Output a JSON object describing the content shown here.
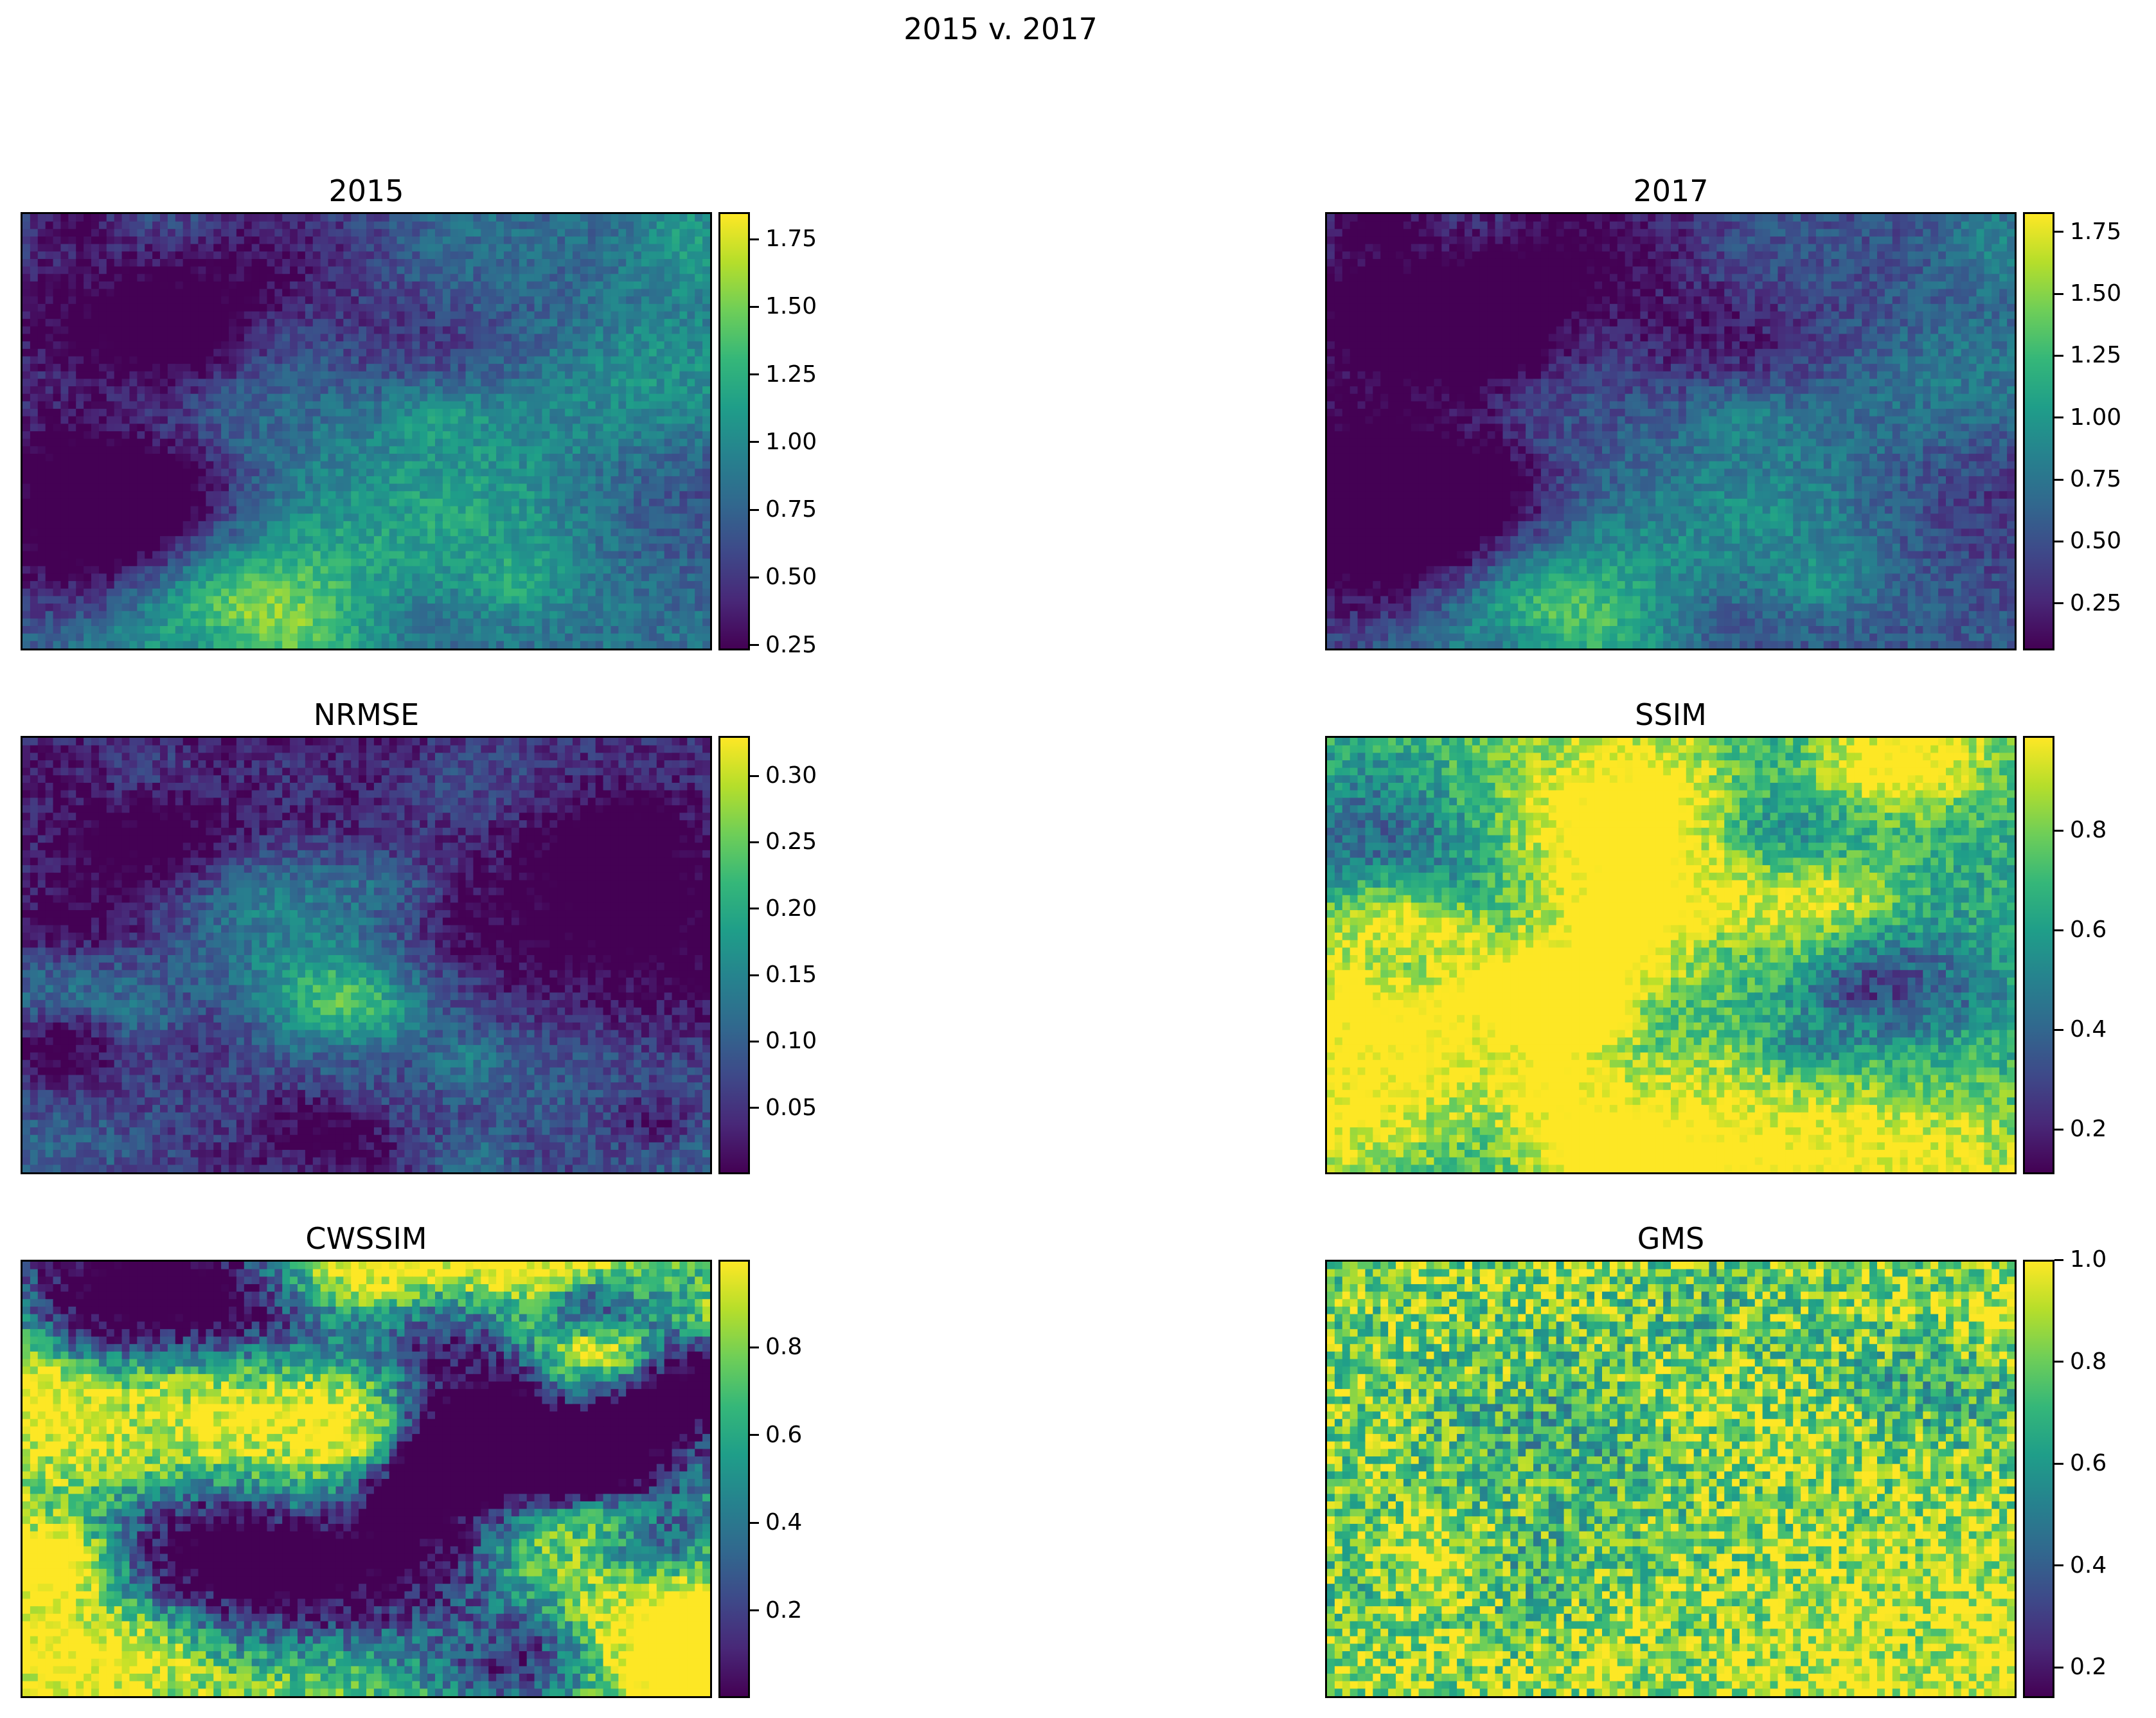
{
  "figure": {
    "title": "2015 v. 2017"
  },
  "chart_data": [
    {
      "type": "heatmap",
      "title": "2015",
      "colormap": "viridis",
      "ticks": [
        0.25,
        0.5,
        0.75,
        1.0,
        1.25,
        1.5,
        1.75
      ],
      "tick_labels": [
        "0.25",
        "0.50",
        "0.75",
        "1.00",
        "1.25",
        "1.50",
        "1.75"
      ],
      "clim": [
        0.23,
        1.85
      ]
    },
    {
      "type": "heatmap",
      "title": "2017",
      "colormap": "viridis",
      "ticks": [
        0.25,
        0.5,
        0.75,
        1.0,
        1.25,
        1.5,
        1.75
      ],
      "tick_labels": [
        "0.25",
        "0.50",
        "0.75",
        "1.00",
        "1.25",
        "1.50",
        "1.75"
      ],
      "clim": [
        0.06,
        1.83
      ]
    },
    {
      "type": "heatmap",
      "title": "NRMSE",
      "colormap": "viridis",
      "ticks": [
        0.05,
        0.1,
        0.15,
        0.2,
        0.25,
        0.3
      ],
      "tick_labels": [
        "0.05",
        "0.10",
        "0.15",
        "0.20",
        "0.25",
        "0.30"
      ],
      "clim": [
        0.0,
        0.33
      ]
    },
    {
      "type": "heatmap",
      "title": "SSIM",
      "colormap": "viridis",
      "ticks": [
        0.2,
        0.4,
        0.6,
        0.8
      ],
      "tick_labels": [
        "0.2",
        "0.4",
        "0.6",
        "0.8"
      ],
      "clim": [
        0.11,
        0.99
      ]
    },
    {
      "type": "heatmap",
      "title": "CWSSIM",
      "colormap": "viridis",
      "ticks": [
        0.2,
        0.4,
        0.6,
        0.8
      ],
      "tick_labels": [
        "0.2",
        "0.4",
        "0.6",
        "0.8"
      ],
      "clim": [
        0.0,
        1.0
      ]
    },
    {
      "type": "heatmap",
      "title": "GMS",
      "colormap": "viridis",
      "ticks": [
        0.2,
        0.4,
        0.6,
        0.8,
        1.0
      ],
      "tick_labels": [
        "0.2",
        "0.4",
        "0.6",
        "0.8",
        "1.0"
      ],
      "clim": [
        0.14,
        1.0
      ]
    }
  ]
}
